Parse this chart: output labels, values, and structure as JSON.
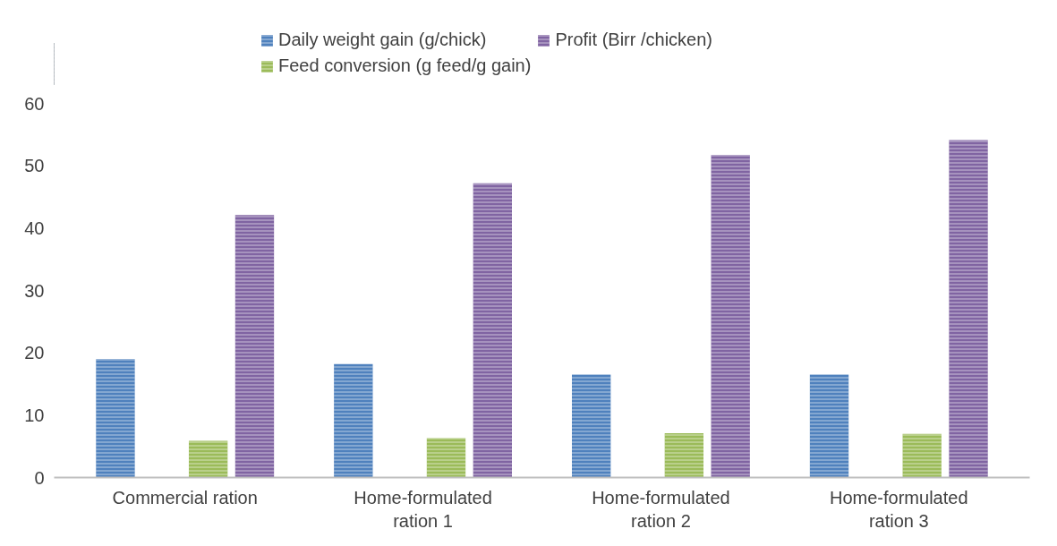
{
  "chart_data": {
    "type": "bar",
    "categories": [
      "Commercial ration",
      "Home-formulated ration 1",
      "Home-formulated ration 2",
      "Home-formulated ration 3"
    ],
    "series": [
      {
        "name": "Daily weight gain (g/chick)",
        "color": "#4f81bd",
        "values": [
          19.0,
          18.2,
          16.5,
          16.5
        ]
      },
      {
        "name": "Feed conversion (g feed/g gain)",
        "color": "#9bbb59",
        "values": [
          5.9,
          6.3,
          7.1,
          7.0
        ]
      },
      {
        "name": "Profit (Birr /chicken)",
        "color": "#8064a2",
        "values": [
          42.1,
          47.2,
          51.7,
          54.1
        ]
      }
    ],
    "ylim": [
      0,
      60
    ],
    "yticks": [
      0,
      10,
      20,
      30,
      40,
      50,
      60
    ],
    "grid": false,
    "legend": "top"
  }
}
